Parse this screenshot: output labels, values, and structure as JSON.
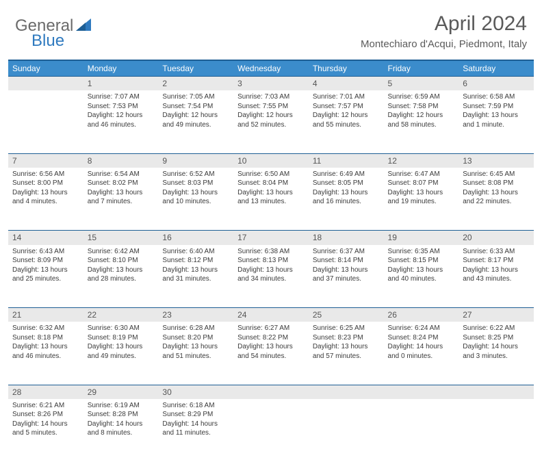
{
  "logo": {
    "text1": "General",
    "text2": "Blue"
  },
  "title": "April 2024",
  "location": "Montechiaro d'Acqui, Piedmont, Italy",
  "colors": {
    "header_bg": "#3b8ccb",
    "header_border": "#1d5e94",
    "daynum_bg": "#e9e9e9",
    "text": "#3a3a3a",
    "logo_gray": "#6a6a6a",
    "logo_blue": "#2f7abf"
  },
  "weekdays": [
    "Sunday",
    "Monday",
    "Tuesday",
    "Wednesday",
    "Thursday",
    "Friday",
    "Saturday"
  ],
  "weeks": [
    {
      "nums": [
        "",
        "1",
        "2",
        "3",
        "4",
        "5",
        "6"
      ],
      "cells": [
        null,
        {
          "sunrise": "Sunrise: 7:07 AM",
          "sunset": "Sunset: 7:53 PM",
          "day1": "Daylight: 12 hours",
          "day2": "and 46 minutes."
        },
        {
          "sunrise": "Sunrise: 7:05 AM",
          "sunset": "Sunset: 7:54 PM",
          "day1": "Daylight: 12 hours",
          "day2": "and 49 minutes."
        },
        {
          "sunrise": "Sunrise: 7:03 AM",
          "sunset": "Sunset: 7:55 PM",
          "day1": "Daylight: 12 hours",
          "day2": "and 52 minutes."
        },
        {
          "sunrise": "Sunrise: 7:01 AM",
          "sunset": "Sunset: 7:57 PM",
          "day1": "Daylight: 12 hours",
          "day2": "and 55 minutes."
        },
        {
          "sunrise": "Sunrise: 6:59 AM",
          "sunset": "Sunset: 7:58 PM",
          "day1": "Daylight: 12 hours",
          "day2": "and 58 minutes."
        },
        {
          "sunrise": "Sunrise: 6:58 AM",
          "sunset": "Sunset: 7:59 PM",
          "day1": "Daylight: 13 hours",
          "day2": "and 1 minute."
        }
      ]
    },
    {
      "nums": [
        "7",
        "8",
        "9",
        "10",
        "11",
        "12",
        "13"
      ],
      "cells": [
        {
          "sunrise": "Sunrise: 6:56 AM",
          "sunset": "Sunset: 8:00 PM",
          "day1": "Daylight: 13 hours",
          "day2": "and 4 minutes."
        },
        {
          "sunrise": "Sunrise: 6:54 AM",
          "sunset": "Sunset: 8:02 PM",
          "day1": "Daylight: 13 hours",
          "day2": "and 7 minutes."
        },
        {
          "sunrise": "Sunrise: 6:52 AM",
          "sunset": "Sunset: 8:03 PM",
          "day1": "Daylight: 13 hours",
          "day2": "and 10 minutes."
        },
        {
          "sunrise": "Sunrise: 6:50 AM",
          "sunset": "Sunset: 8:04 PM",
          "day1": "Daylight: 13 hours",
          "day2": "and 13 minutes."
        },
        {
          "sunrise": "Sunrise: 6:49 AM",
          "sunset": "Sunset: 8:05 PM",
          "day1": "Daylight: 13 hours",
          "day2": "and 16 minutes."
        },
        {
          "sunrise": "Sunrise: 6:47 AM",
          "sunset": "Sunset: 8:07 PM",
          "day1": "Daylight: 13 hours",
          "day2": "and 19 minutes."
        },
        {
          "sunrise": "Sunrise: 6:45 AM",
          "sunset": "Sunset: 8:08 PM",
          "day1": "Daylight: 13 hours",
          "day2": "and 22 minutes."
        }
      ]
    },
    {
      "nums": [
        "14",
        "15",
        "16",
        "17",
        "18",
        "19",
        "20"
      ],
      "cells": [
        {
          "sunrise": "Sunrise: 6:43 AM",
          "sunset": "Sunset: 8:09 PM",
          "day1": "Daylight: 13 hours",
          "day2": "and 25 minutes."
        },
        {
          "sunrise": "Sunrise: 6:42 AM",
          "sunset": "Sunset: 8:10 PM",
          "day1": "Daylight: 13 hours",
          "day2": "and 28 minutes."
        },
        {
          "sunrise": "Sunrise: 6:40 AM",
          "sunset": "Sunset: 8:12 PM",
          "day1": "Daylight: 13 hours",
          "day2": "and 31 minutes."
        },
        {
          "sunrise": "Sunrise: 6:38 AM",
          "sunset": "Sunset: 8:13 PM",
          "day1": "Daylight: 13 hours",
          "day2": "and 34 minutes."
        },
        {
          "sunrise": "Sunrise: 6:37 AM",
          "sunset": "Sunset: 8:14 PM",
          "day1": "Daylight: 13 hours",
          "day2": "and 37 minutes."
        },
        {
          "sunrise": "Sunrise: 6:35 AM",
          "sunset": "Sunset: 8:15 PM",
          "day1": "Daylight: 13 hours",
          "day2": "and 40 minutes."
        },
        {
          "sunrise": "Sunrise: 6:33 AM",
          "sunset": "Sunset: 8:17 PM",
          "day1": "Daylight: 13 hours",
          "day2": "and 43 minutes."
        }
      ]
    },
    {
      "nums": [
        "21",
        "22",
        "23",
        "24",
        "25",
        "26",
        "27"
      ],
      "cells": [
        {
          "sunrise": "Sunrise: 6:32 AM",
          "sunset": "Sunset: 8:18 PM",
          "day1": "Daylight: 13 hours",
          "day2": "and 46 minutes."
        },
        {
          "sunrise": "Sunrise: 6:30 AM",
          "sunset": "Sunset: 8:19 PM",
          "day1": "Daylight: 13 hours",
          "day2": "and 49 minutes."
        },
        {
          "sunrise": "Sunrise: 6:28 AM",
          "sunset": "Sunset: 8:20 PM",
          "day1": "Daylight: 13 hours",
          "day2": "and 51 minutes."
        },
        {
          "sunrise": "Sunrise: 6:27 AM",
          "sunset": "Sunset: 8:22 PM",
          "day1": "Daylight: 13 hours",
          "day2": "and 54 minutes."
        },
        {
          "sunrise": "Sunrise: 6:25 AM",
          "sunset": "Sunset: 8:23 PM",
          "day1": "Daylight: 13 hours",
          "day2": "and 57 minutes."
        },
        {
          "sunrise": "Sunrise: 6:24 AM",
          "sunset": "Sunset: 8:24 PM",
          "day1": "Daylight: 14 hours",
          "day2": "and 0 minutes."
        },
        {
          "sunrise": "Sunrise: 6:22 AM",
          "sunset": "Sunset: 8:25 PM",
          "day1": "Daylight: 14 hours",
          "day2": "and 3 minutes."
        }
      ]
    },
    {
      "nums": [
        "28",
        "29",
        "30",
        "",
        "",
        "",
        ""
      ],
      "cells": [
        {
          "sunrise": "Sunrise: 6:21 AM",
          "sunset": "Sunset: 8:26 PM",
          "day1": "Daylight: 14 hours",
          "day2": "and 5 minutes."
        },
        {
          "sunrise": "Sunrise: 6:19 AM",
          "sunset": "Sunset: 8:28 PM",
          "day1": "Daylight: 14 hours",
          "day2": "and 8 minutes."
        },
        {
          "sunrise": "Sunrise: 6:18 AM",
          "sunset": "Sunset: 8:29 PM",
          "day1": "Daylight: 14 hours",
          "day2": "and 11 minutes."
        },
        null,
        null,
        null,
        null
      ]
    }
  ]
}
